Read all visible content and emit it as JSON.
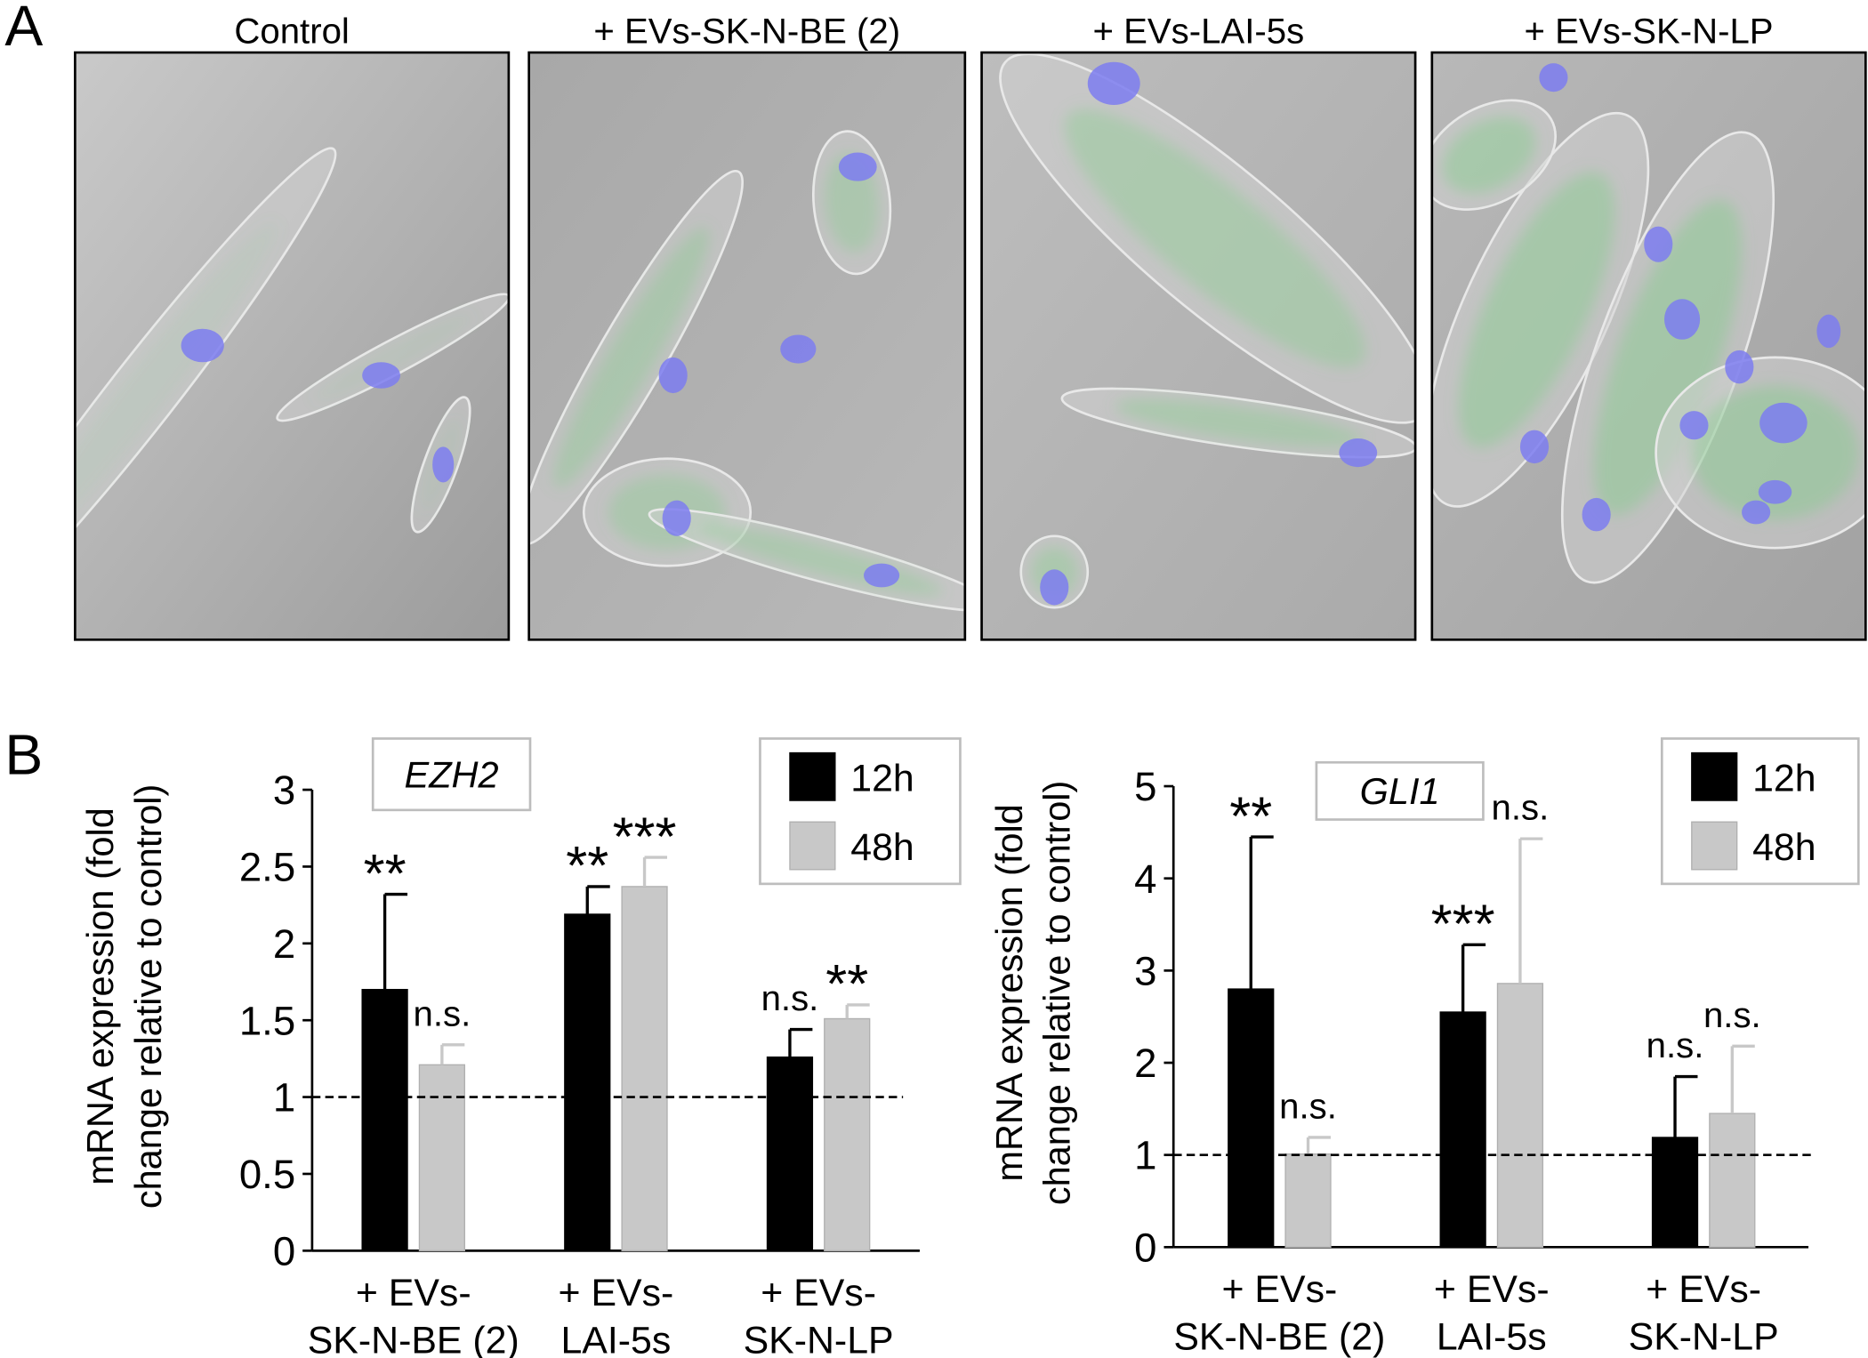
{
  "panels": {
    "a": {
      "label": "A",
      "images": [
        "Control",
        "+ EVs-SK-N-BE (2)",
        "+ EVs-LAI-5s",
        "+ EVs-SK-N-LP"
      ]
    },
    "b": {
      "label": "B"
    }
  },
  "chart_data": [
    {
      "type": "bar",
      "title": "EZH2",
      "ylabel": [
        "mRNA expression (fold",
        "change relative to control)"
      ],
      "categories": [
        [
          "+ EVs-",
          "SK-N-BE (2)"
        ],
        [
          "+ EVs-",
          "LAI-5s"
        ],
        [
          "+ EVs-",
          "SK-N-LP"
        ]
      ],
      "series": [
        {
          "name": "12h",
          "color": "#000000",
          "values": [
            1.7,
            2.19,
            1.26
          ],
          "errors": [
            0.62,
            0.18,
            0.18
          ],
          "annotations": [
            "**",
            "**",
            "n.s."
          ]
        },
        {
          "name": "48h",
          "color": "#c8c8c8",
          "values": [
            1.21,
            2.37,
            1.51
          ],
          "errors": [
            0.13,
            0.19,
            0.09
          ],
          "annotations": [
            "n.s.",
            "***",
            "**"
          ]
        }
      ],
      "ylim": [
        0,
        3
      ],
      "yticks": [
        0,
        0.5,
        1,
        1.5,
        2,
        2.5,
        3
      ],
      "reference_line": 1,
      "legend": "upper right"
    },
    {
      "type": "bar",
      "title": "GLI1",
      "ylabel": [
        "mRNA expression (fold",
        "change relative to control)"
      ],
      "categories": [
        [
          "+ EVs-",
          "SK-N-BE (2)"
        ],
        [
          "+ EVs-",
          "LAI-5s"
        ],
        [
          "+ EVs-",
          "SK-N-LP"
        ]
      ],
      "series": [
        {
          "name": "12h",
          "color": "#000000",
          "values": [
            2.8,
            2.55,
            1.19
          ],
          "errors": [
            1.65,
            0.73,
            0.66
          ],
          "annotations": [
            "**",
            "***",
            "n.s."
          ]
        },
        {
          "name": "48h",
          "color": "#c8c8c8",
          "values": [
            1.01,
            2.86,
            1.45
          ],
          "errors": [
            0.18,
            1.57,
            0.73
          ],
          "annotations": [
            "n.s.",
            "n.s.",
            "n.s."
          ]
        }
      ],
      "ylim": [
        0,
        5
      ],
      "yticks": [
        0,
        1,
        2,
        3,
        4,
        5
      ],
      "reference_line": 1,
      "legend": "upper right"
    }
  ]
}
